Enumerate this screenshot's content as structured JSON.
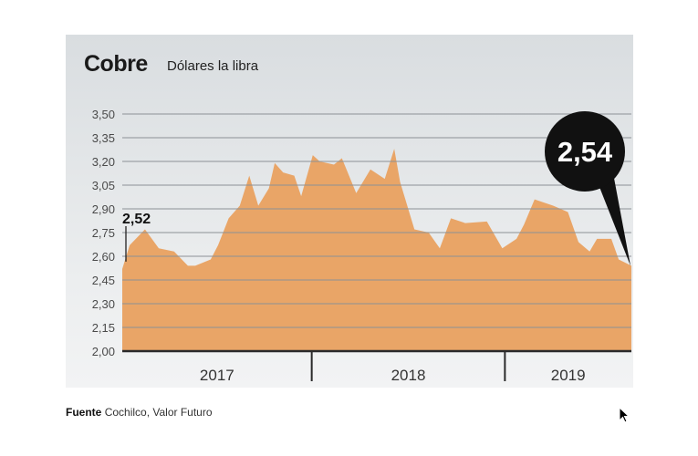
{
  "chart_data": {
    "type": "area",
    "title": "Cobre",
    "subtitle": "Dólares la libra",
    "xlabel": "",
    "ylabel": "",
    "ylim": [
      2.0,
      3.5
    ],
    "yticks": [
      "3,50",
      "3,35",
      "3,20",
      "3,05",
      "2,90",
      "2,75",
      "2,60",
      "2,45",
      "2,30",
      "2,15",
      "2,00"
    ],
    "ytick_values": [
      3.5,
      3.35,
      3.2,
      3.05,
      2.9,
      2.75,
      2.6,
      2.45,
      2.3,
      2.15,
      2.0
    ],
    "xlim": [
      "2017-01-08",
      "2019-08-28"
    ],
    "xticks": [
      "2017",
      "2018",
      "2019"
    ],
    "grid": true,
    "fill_color": "#e9a567",
    "points": [
      [
        "2017-01-08",
        2.52
      ],
      [
        "2017-01-22",
        2.67
      ],
      [
        "2017-02-20",
        2.77
      ],
      [
        "2017-03-18",
        2.65
      ],
      [
        "2017-04-16",
        2.63
      ],
      [
        "2017-05-12",
        2.54
      ],
      [
        "2017-05-26",
        2.54
      ],
      [
        "2017-06-24",
        2.58
      ],
      [
        "2017-07-08",
        2.67
      ],
      [
        "2017-07-28",
        2.84
      ],
      [
        "2017-08-18",
        2.92
      ],
      [
        "2017-09-05",
        3.11
      ],
      [
        "2017-09-22",
        2.92
      ],
      [
        "2017-10-12",
        3.03
      ],
      [
        "2017-10-23",
        3.19
      ],
      [
        "2017-11-08",
        3.13
      ],
      [
        "2017-11-29",
        3.11
      ],
      [
        "2017-12-12",
        2.98
      ],
      [
        "2018-01-03",
        3.24
      ],
      [
        "2018-01-16",
        3.2
      ],
      [
        "2018-02-12",
        3.18
      ],
      [
        "2018-02-27",
        3.22
      ],
      [
        "2018-03-26",
        3.0
      ],
      [
        "2018-04-22",
        3.15
      ],
      [
        "2018-05-19",
        3.09
      ],
      [
        "2018-06-06",
        3.28
      ],
      [
        "2018-06-17",
        3.07
      ],
      [
        "2018-07-14",
        2.77
      ],
      [
        "2018-08-10",
        2.75
      ],
      [
        "2018-08-31",
        2.65
      ],
      [
        "2018-09-21",
        2.84
      ],
      [
        "2018-10-18",
        2.81
      ],
      [
        "2018-11-28",
        2.82
      ],
      [
        "2018-12-27",
        2.65
      ],
      [
        "2019-01-23",
        2.71
      ],
      [
        "2019-02-06",
        2.8
      ],
      [
        "2019-02-26",
        2.96
      ],
      [
        "2019-04-02",
        2.92
      ],
      [
        "2019-04-30",
        2.88
      ],
      [
        "2019-05-20",
        2.69
      ],
      [
        "2019-06-10",
        2.63
      ],
      [
        "2019-06-24",
        2.71
      ],
      [
        "2019-07-21",
        2.71
      ],
      [
        "2019-08-04",
        2.58
      ],
      [
        "2019-08-28",
        2.54
      ]
    ],
    "annotations": [
      {
        "text": "2,52",
        "date": "2017-01-08",
        "value": 2.52
      },
      {
        "text": "2,54",
        "date": "2019-08-28",
        "value": 2.54,
        "style": "black-bubble"
      }
    ]
  },
  "source": {
    "label": "Fuente",
    "text": "Cochilco, Valor Futuro"
  }
}
